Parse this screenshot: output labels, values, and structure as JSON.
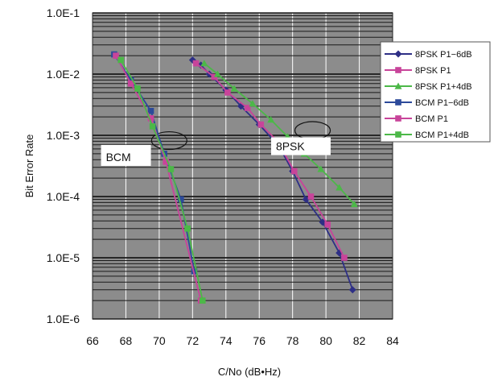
{
  "chart_data": {
    "type": "line",
    "xlabel": "C/No (dB•Hz)",
    "ylabel": "Bit Error Rate",
    "xlim": [
      66,
      84
    ],
    "ylim": [
      1e-06,
      0.1
    ],
    "y_scale": "log",
    "x_ticks": [
      "66",
      "68",
      "70",
      "72",
      "74",
      "76",
      "78",
      "80",
      "82",
      "84"
    ],
    "y_ticks": [
      "1.0E-1",
      "1.0E-2",
      "1.0E-3",
      "1.0E-4",
      "1.0E-5",
      "1.0E-6"
    ],
    "grid": true,
    "legend_position": "top-right",
    "plot_background": "#8c8c8c",
    "grid_color": "#1a1a1a",
    "series": [
      {
        "name": "8PSK P1−6dB",
        "color": "#2e2f86",
        "marker": "diamond",
        "points": [
          [
            72.0,
            0.017
          ],
          [
            72.5,
            0.014
          ],
          [
            73.0,
            0.01
          ],
          [
            74.0,
            0.0055
          ],
          [
            74.9,
            0.003
          ],
          [
            76.0,
            0.0015
          ],
          [
            77.2,
            0.00065
          ],
          [
            78.0,
            0.00026
          ],
          [
            78.8,
            9e-05
          ],
          [
            79.8,
            3.8e-05
          ],
          [
            80.8,
            1.2e-05
          ],
          [
            81.6,
            3e-06
          ]
        ]
      },
      {
        "name": "8PSK P1",
        "color": "#c8449a",
        "marker": "square",
        "points": [
          [
            72.2,
            0.015
          ],
          [
            73.3,
            0.009
          ],
          [
            74.1,
            0.005
          ],
          [
            75.3,
            0.0028
          ],
          [
            76.1,
            0.0015
          ],
          [
            77.1,
            0.0008
          ],
          [
            78.1,
            0.00026
          ],
          [
            79.1,
            0.0001
          ],
          [
            80.1,
            3.5e-05
          ],
          [
            81.1,
            1e-05
          ]
        ]
      },
      {
        "name": "8PSK P1+4dB",
        "color": "#4cb848",
        "marker": "triangle",
        "points": [
          [
            72.7,
            0.015
          ],
          [
            73.5,
            0.01
          ],
          [
            74.5,
            0.0058
          ],
          [
            75.6,
            0.0033
          ],
          [
            76.7,
            0.0018
          ],
          [
            77.7,
            0.00095
          ],
          [
            78.7,
            0.0005
          ],
          [
            79.7,
            0.00028
          ],
          [
            80.8,
            0.00014
          ],
          [
            81.7,
            7.5e-05
          ]
        ]
      },
      {
        "name": "BCM P1−6dB",
        "color": "#2c4a9a",
        "marker": "square",
        "points": [
          [
            67.3,
            0.021
          ],
          [
            68.3,
            0.008
          ],
          [
            69.5,
            0.0025
          ],
          [
            70.3,
            0.0005
          ],
          [
            71.3,
            9e-05
          ],
          [
            72.1,
            6e-06
          ]
        ]
      },
      {
        "name": "BCM P1",
        "color": "#c8449a",
        "marker": "square",
        "points": [
          [
            67.4,
            0.02
          ],
          [
            68.3,
            0.007
          ],
          [
            69.5,
            0.0019
          ],
          [
            70.4,
            0.00037
          ],
          [
            72.5,
            2e-06
          ]
        ]
      },
      {
        "name": "BCM P1+4dB",
        "color": "#4cb848",
        "marker": "square",
        "points": [
          [
            67.7,
            0.017
          ],
          [
            68.7,
            0.0058
          ],
          [
            69.6,
            0.0014
          ],
          [
            70.7,
            0.00028
          ],
          [
            71.7,
            3e-05
          ],
          [
            72.6,
            2e-06
          ]
        ]
      }
    ],
    "annotations": [
      {
        "text": "BCM",
        "x": 66.8,
        "y": 0.00038
      },
      {
        "text": "8PSK",
        "x": 77.0,
        "y": 0.00057
      }
    ],
    "ellipses": [
      {
        "cx": 70.6,
        "cy": 0.00082
      },
      {
        "cx": 79.2,
        "cy": 0.0012
      }
    ]
  }
}
